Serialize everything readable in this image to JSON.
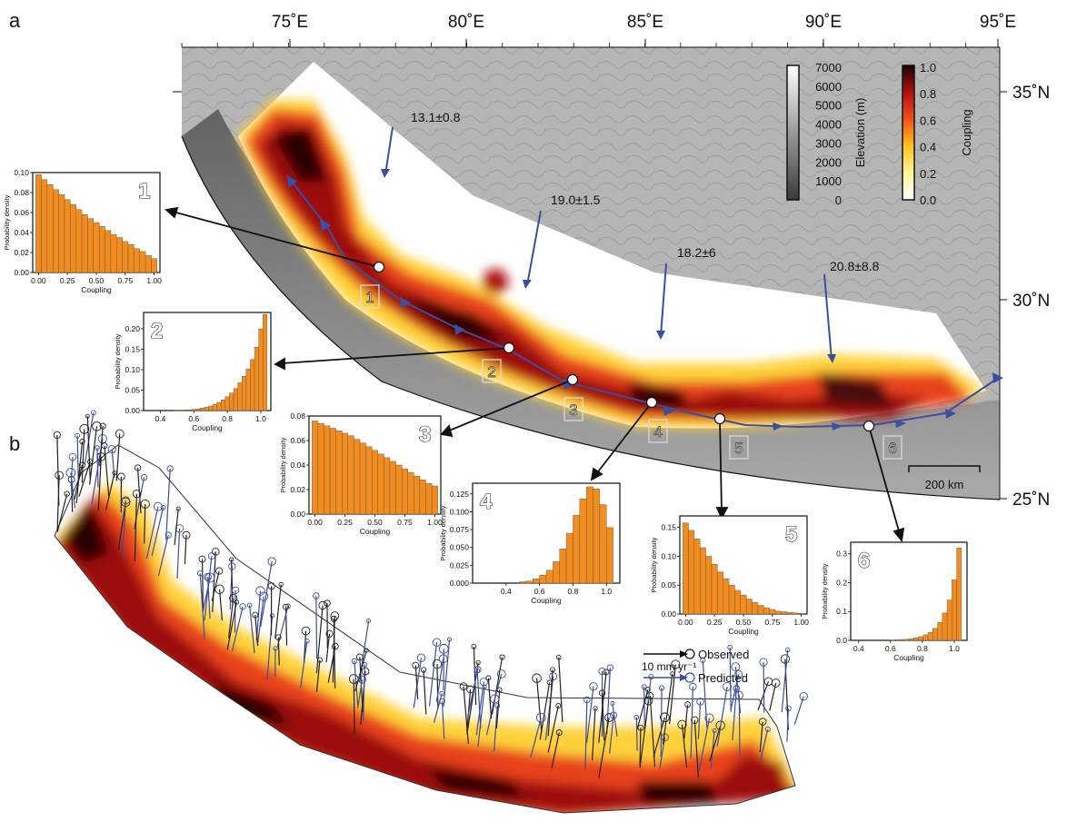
{
  "panel_labels": {
    "a": "a",
    "b": "b"
  },
  "lon_ticks": [
    "75˚E",
    "80˚E",
    "85˚E",
    "90˚E",
    "95˚E"
  ],
  "lat_ticks": [
    "35˚N",
    "30˚N",
    "25˚N"
  ],
  "rates": [
    {
      "label": "13.1±0.8"
    },
    {
      "label": "19.0±1.5"
    },
    {
      "label": "18.2±6"
    },
    {
      "label": "20.8±8.8"
    }
  ],
  "segments": [
    "1",
    "2",
    "3",
    "4",
    "5",
    "6"
  ],
  "elevation_colorbar": {
    "title": "Elevation (m)",
    "ticks": [
      "7000",
      "6000",
      "5000",
      "4000",
      "3000",
      "2000",
      "1000",
      "0"
    ]
  },
  "coupling_colorbar": {
    "title": "Coupling",
    "ticks": [
      "1.0",
      "0.8",
      "0.6",
      "0.4",
      "0.2",
      "0.0"
    ]
  },
  "scale_bar": "200 km",
  "legend": {
    "observed": "Observed",
    "predicted": "Predicted",
    "scale": "10 mm yr⁻¹"
  },
  "colors": {
    "bar_fill": "#f28c1e",
    "arrow_blue": "#3b4fa0",
    "fault_line": "#3b4fa0"
  },
  "chart_data": [
    {
      "type": "bar",
      "panel": "1",
      "xlabel": "Coupling",
      "ylabel": "Probability density",
      "xticks": [
        "0.00",
        "0.25",
        "0.50",
        "0.75",
        "1.00"
      ],
      "yticks": [
        "0.00",
        "0.02",
        "0.04",
        "0.06",
        "0.08",
        "0.10"
      ],
      "xlim": [
        -0.05,
        1.05
      ],
      "ylim": [
        0,
        0.1
      ],
      "bin_width": 0.05,
      "x": [
        0.0,
        0.05,
        0.1,
        0.15,
        0.2,
        0.25,
        0.3,
        0.35,
        0.4,
        0.45,
        0.5,
        0.55,
        0.6,
        0.65,
        0.7,
        0.75,
        0.8,
        0.85,
        0.9,
        0.95,
        1.0
      ],
      "values": [
        0.098,
        0.093,
        0.088,
        0.083,
        0.078,
        0.073,
        0.068,
        0.063,
        0.058,
        0.054,
        0.05,
        0.046,
        0.042,
        0.038,
        0.035,
        0.031,
        0.028,
        0.024,
        0.021,
        0.017,
        0.014
      ]
    },
    {
      "type": "bar",
      "panel": "2",
      "xlabel": "Coupling",
      "ylabel": "Probability density",
      "xticks": [
        "0.4",
        "0.6",
        "0.8",
        "1.0"
      ],
      "yticks": [
        "0.00",
        "0.05",
        "0.10",
        "0.15",
        "0.20"
      ],
      "xlim": [
        0.3,
        1.06
      ],
      "ylim": [
        0,
        0.24
      ],
      "bin_width": 0.025,
      "x": [
        0.5,
        0.525,
        0.55,
        0.575,
        0.6,
        0.625,
        0.65,
        0.675,
        0.7,
        0.725,
        0.75,
        0.775,
        0.8,
        0.825,
        0.85,
        0.875,
        0.9,
        0.925,
        0.95,
        0.975,
        1.0,
        1.025
      ],
      "values": [
        0.001,
        0.001,
        0.002,
        0.002,
        0.003,
        0.004,
        0.006,
        0.008,
        0.011,
        0.015,
        0.02,
        0.026,
        0.034,
        0.043,
        0.054,
        0.068,
        0.084,
        0.102,
        0.125,
        0.155,
        0.2,
        0.235
      ]
    },
    {
      "type": "bar",
      "panel": "3",
      "xlabel": "Coupling",
      "ylabel": "Probability density",
      "xticks": [
        "0.00",
        "0.25",
        "0.50",
        "0.75",
        "1.00"
      ],
      "yticks": [
        "0.00",
        "0.02",
        "0.04",
        "0.06",
        "0.08"
      ],
      "xlim": [
        -0.05,
        1.05
      ],
      "ylim": [
        0,
        0.08
      ],
      "bin_width": 0.05,
      "x": [
        0.0,
        0.05,
        0.1,
        0.15,
        0.2,
        0.25,
        0.3,
        0.35,
        0.4,
        0.45,
        0.5,
        0.55,
        0.6,
        0.65,
        0.7,
        0.75,
        0.8,
        0.85,
        0.9,
        0.95,
        1.0
      ],
      "values": [
        0.076,
        0.074,
        0.072,
        0.07,
        0.068,
        0.066,
        0.064,
        0.061,
        0.058,
        0.055,
        0.052,
        0.049,
        0.046,
        0.043,
        0.04,
        0.037,
        0.034,
        0.031,
        0.028,
        0.025,
        0.023
      ]
    },
    {
      "type": "bar",
      "panel": "4",
      "xlabel": "Coupling",
      "ylabel": "Probability density",
      "xticks": [
        "0.4",
        "0.6",
        "0.8",
        "1.0"
      ],
      "yticks": [
        "0.000",
        "0.025",
        "0.050",
        "0.075",
        "0.100",
        "0.125"
      ],
      "xlim": [
        0.2,
        1.08
      ],
      "ylim": [
        0,
        0.14
      ],
      "bin_width": 0.04,
      "x": [
        0.5,
        0.54,
        0.58,
        0.62,
        0.66,
        0.7,
        0.74,
        0.78,
        0.82,
        0.86,
        0.9,
        0.94,
        0.98,
        1.02
      ],
      "values": [
        0.002,
        0.003,
        0.006,
        0.011,
        0.018,
        0.03,
        0.048,
        0.07,
        0.095,
        0.118,
        0.135,
        0.132,
        0.11,
        0.078
      ]
    },
    {
      "type": "bar",
      "panel": "5",
      "xlabel": "Coupling",
      "ylabel": "Probability density",
      "xticks": [
        "0.00",
        "0.25",
        "0.50",
        "0.75",
        "1.00"
      ],
      "yticks": [
        "0.00",
        "0.05",
        "0.10",
        "0.15"
      ],
      "xlim": [
        -0.05,
        1.05
      ],
      "ylim": [
        0,
        0.17
      ],
      "bin_width": 0.05,
      "x": [
        0.0,
        0.05,
        0.1,
        0.15,
        0.2,
        0.25,
        0.3,
        0.35,
        0.4,
        0.45,
        0.5,
        0.55,
        0.6,
        0.65,
        0.7,
        0.75,
        0.8,
        0.85,
        0.9,
        0.95,
        1.0
      ],
      "values": [
        0.158,
        0.145,
        0.13,
        0.115,
        0.1,
        0.086,
        0.073,
        0.061,
        0.05,
        0.041,
        0.033,
        0.026,
        0.02,
        0.015,
        0.011,
        0.008,
        0.005,
        0.004,
        0.003,
        0.002,
        0.001
      ]
    },
    {
      "type": "bar",
      "panel": "6",
      "xlabel": "Coupling",
      "ylabel": "Probability density",
      "xticks": [
        "0.4",
        "0.6",
        "0.8",
        "1.0"
      ],
      "yticks": [
        "0.0",
        "0.1",
        "0.2",
        "0.3"
      ],
      "xlim": [
        0.35,
        1.08
      ],
      "ylim": [
        0,
        0.34
      ],
      "bin_width": 0.03,
      "x": [
        0.61,
        0.64,
        0.67,
        0.7,
        0.73,
        0.76,
        0.79,
        0.82,
        0.85,
        0.88,
        0.91,
        0.94,
        0.97,
        1.0,
        1.03
      ],
      "values": [
        0.001,
        0.002,
        0.003,
        0.004,
        0.006,
        0.009,
        0.013,
        0.019,
        0.028,
        0.042,
        0.062,
        0.095,
        0.14,
        0.21,
        0.32
      ]
    }
  ]
}
